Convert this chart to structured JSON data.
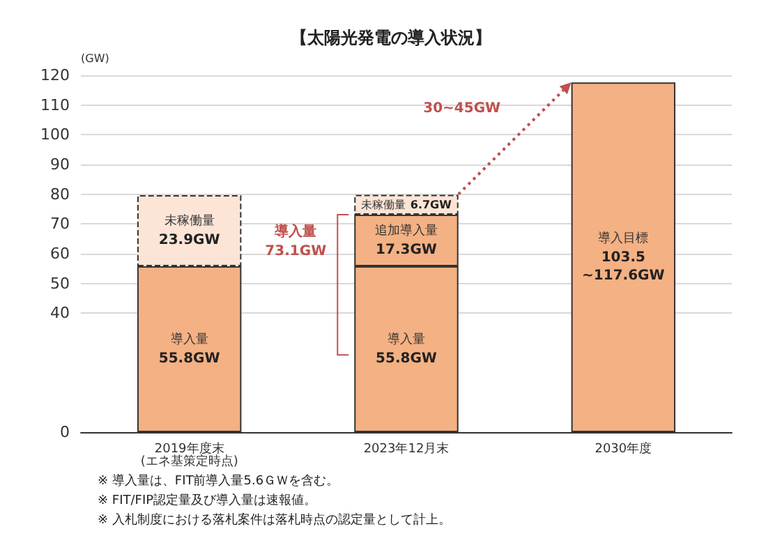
{
  "chart_data": {
    "type": "bar",
    "title": "【太陽光発電の導入状況】",
    "ylabel": "(GW)",
    "categories": [
      "2019年度末\n(エネ基策定時点)",
      "2023年12月末",
      "2030年度"
    ],
    "stacked": true,
    "series": [
      {
        "name": "導入量",
        "color": "#f4b183",
        "values": [
          55.8,
          55.8,
          null
        ],
        "value_labels": [
          "55.8GW",
          "55.8GW",
          null
        ]
      },
      {
        "name": "追加導入量",
        "color": "#f4b183",
        "values": [
          null,
          17.3,
          null
        ],
        "value_labels": [
          null,
          "17.3GW",
          null
        ]
      },
      {
        "name": "未稼働量",
        "color": "#fce4d6",
        "line_style": "dashed",
        "values": [
          23.9,
          6.7,
          null
        ],
        "value_labels": [
          "23.9GW",
          "6.7GW",
          null
        ]
      },
      {
        "name": "導入目標",
        "color": "#f4b183",
        "values": [
          null,
          null,
          117.6
        ],
        "value_labels": [
          null,
          null,
          "103.5\n~117.6GW"
        ]
      }
    ],
    "ylim": [
      0,
      120
    ],
    "yticks": [
      0,
      40,
      50,
      60,
      70,
      80,
      90,
      100,
      110,
      120
    ],
    "grid": "y",
    "annotations": [
      "導入量\n73.1GW",
      "30~45GW",
      "※ 導入量は、FIT前導入量5.6ＧＷを含む。",
      "※ FIT/FIP認定量及び導入量は速報値。",
      "※ 入札制度における落札案件は落札時点の認定量として計上。"
    ]
  }
}
